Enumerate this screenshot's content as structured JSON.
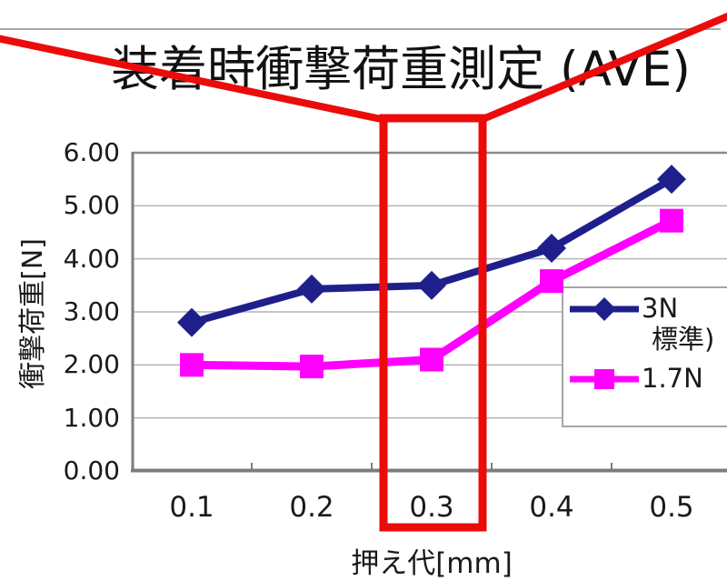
{
  "page": {
    "background": "#ffffff",
    "divider_color": "#a8a8a8"
  },
  "chart_data": {
    "type": "line",
    "title": "装着時衝撃荷重測定 (AVE)",
    "xlabel": "押え代[mm]",
    "ylabel": "衝撃荷重[N]",
    "categories": [
      "0.1",
      "0.2",
      "0.3",
      "0.4",
      "0.5"
    ],
    "y_ticks": [
      "0.00",
      "1.00",
      "2.00",
      "3.00",
      "4.00",
      "5.00",
      "6.00"
    ],
    "ylim": [
      0,
      6
    ],
    "grid": true,
    "grid_color": "#b4b4b4",
    "axis_color": "#7d7d7d",
    "legend_position": "right-middle",
    "series": [
      {
        "name": "3N",
        "name_line2": "標準)",
        "color": "#1F1F8C",
        "marker": "diamond",
        "values": [
          2.8,
          3.43,
          3.5,
          4.2,
          5.5
        ]
      },
      {
        "name": "1.7N",
        "name_line2": "",
        "color": "#FF00FF",
        "marker": "square",
        "values": [
          2.0,
          1.97,
          2.1,
          3.58,
          4.72
        ]
      }
    ],
    "annotation": {
      "type": "highlight-box-with-callout",
      "category": "0.3",
      "color": "#EC0B0B",
      "note": "red box around the 0.3 column, callout lines running to the top image corners"
    }
  }
}
